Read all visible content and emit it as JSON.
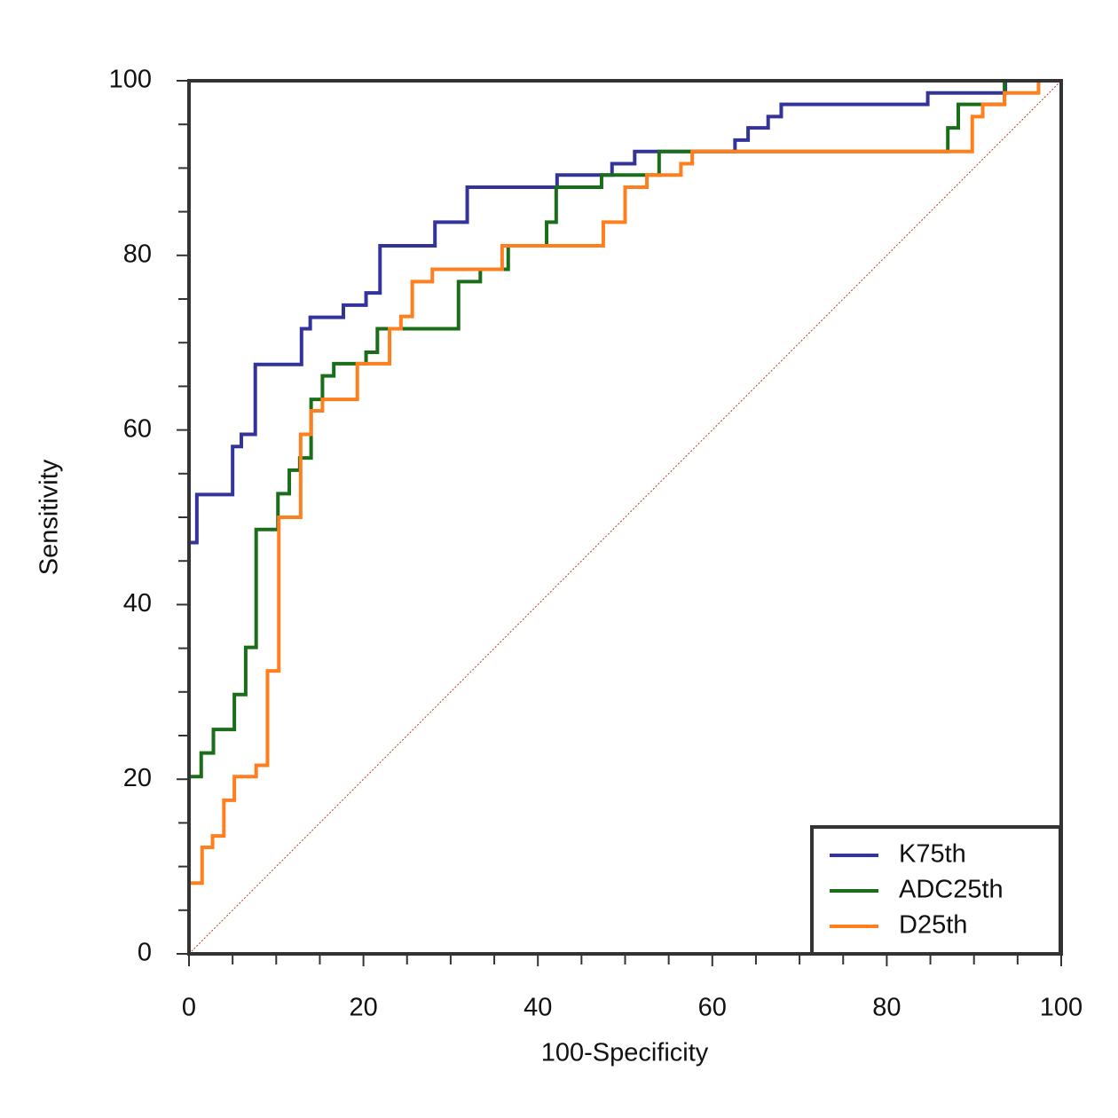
{
  "chart_data": {
    "type": "line",
    "x_label": "100-Specificity",
    "y_label": "Sensitivity",
    "xlim": [
      0,
      100
    ],
    "ylim": [
      0,
      100
    ],
    "xticks": [
      0,
      20,
      40,
      60,
      80,
      100
    ],
    "yticks": [
      0,
      20,
      40,
      60,
      80,
      100
    ],
    "legend_position": "lower right",
    "series": [
      {
        "name": "K75th",
        "color": "#333399",
        "x": [
          0,
          0,
          0.9,
          0.9,
          5.0,
          5.0,
          6.0,
          6.0,
          7.6,
          7.6,
          12.9,
          12.9,
          13.9,
          13.9,
          17.7,
          17.7,
          20.3,
          20.3,
          21.9,
          21.9,
          28.2,
          28.2,
          31.9,
          31.9,
          42.2,
          42.2,
          48.5,
          48.5,
          51.1,
          51.1,
          62.6,
          62.6,
          64.1,
          64.1,
          66.4,
          66.4,
          67.9,
          67.9,
          84.7,
          84.7,
          93.6,
          93.6,
          100
        ],
        "values": [
          0,
          47.1,
          47.1,
          52.6,
          52.6,
          58.1,
          58.1,
          59.5,
          59.5,
          67.5,
          67.5,
          71.6,
          71.6,
          72.9,
          72.9,
          74.3,
          74.3,
          75.7,
          75.7,
          81.1,
          81.1,
          83.8,
          83.8,
          87.8,
          87.8,
          89.2,
          89.2,
          90.5,
          90.5,
          91.9,
          91.9,
          93.2,
          93.2,
          94.6,
          94.6,
          95.9,
          95.9,
          97.3,
          97.3,
          98.6,
          98.6,
          100,
          100
        ]
      },
      {
        "name": "ADC25th",
        "color": "#1a6e1a",
        "x": [
          0,
          0,
          1.4,
          1.4,
          2.8,
          2.8,
          5.2,
          5.2,
          6.5,
          6.5,
          7.7,
          7.7,
          10.2,
          10.2,
          11.5,
          11.5,
          12.7,
          12.7,
          14.0,
          14.0,
          15.3,
          15.3,
          16.6,
          16.6,
          20.3,
          20.3,
          21.6,
          21.6,
          30.9,
          30.9,
          33.4,
          33.4,
          36.6,
          36.6,
          41.0,
          41.0,
          42.1,
          42.1,
          47.3,
          47.3,
          53.9,
          53.9,
          87.0,
          87.0,
          88.2,
          88.2,
          93.5,
          93.5,
          100
        ],
        "values": [
          0,
          20.3,
          20.3,
          23.0,
          23.0,
          25.7,
          25.7,
          29.7,
          29.7,
          35.1,
          35.1,
          48.6,
          48.6,
          52.7,
          52.7,
          55.4,
          55.4,
          56.8,
          56.8,
          63.5,
          63.5,
          66.2,
          66.2,
          67.6,
          67.6,
          68.9,
          68.9,
          71.6,
          71.6,
          77.0,
          77.0,
          78.4,
          78.4,
          81.1,
          81.1,
          83.8,
          83.8,
          87.8,
          87.8,
          89.2,
          89.2,
          91.9,
          91.9,
          94.6,
          94.6,
          97.3,
          97.3,
          100,
          100
        ]
      },
      {
        "name": "D25th",
        "color": "#ff7f1e",
        "x": [
          0,
          0,
          1.5,
          1.5,
          2.7,
          2.7,
          4.0,
          4.0,
          5.2,
          5.2,
          7.7,
          7.7,
          9.0,
          9.0,
          10.3,
          10.3,
          12.8,
          12.8,
          14.0,
          14.0,
          15.3,
          15.3,
          19.3,
          19.3,
          23.0,
          23.0,
          24.3,
          24.3,
          25.6,
          25.6,
          27.9,
          27.9,
          35.9,
          35.9,
          47.5,
          47.5,
          50.0,
          50.0,
          52.5,
          52.5,
          56.4,
          56.4,
          57.7,
          57.7,
          89.8,
          89.8,
          91.0,
          91.0,
          93.5,
          93.5,
          97.4,
          97.4,
          100
        ],
        "values": [
          0,
          8.1,
          8.1,
          12.2,
          12.2,
          13.5,
          13.5,
          17.6,
          17.6,
          20.3,
          20.3,
          21.6,
          21.6,
          32.4,
          32.4,
          50.0,
          50.0,
          59.5,
          59.5,
          62.2,
          62.2,
          63.5,
          63.5,
          67.6,
          67.6,
          71.6,
          71.6,
          73.0,
          73.0,
          77.0,
          77.0,
          78.4,
          78.4,
          81.1,
          81.1,
          83.8,
          83.8,
          87.8,
          87.8,
          89.2,
          89.2,
          90.5,
          90.5,
          91.9,
          91.9,
          95.9,
          95.9,
          97.3,
          97.3,
          98.6,
          98.6,
          100,
          100
        ]
      }
    ]
  }
}
